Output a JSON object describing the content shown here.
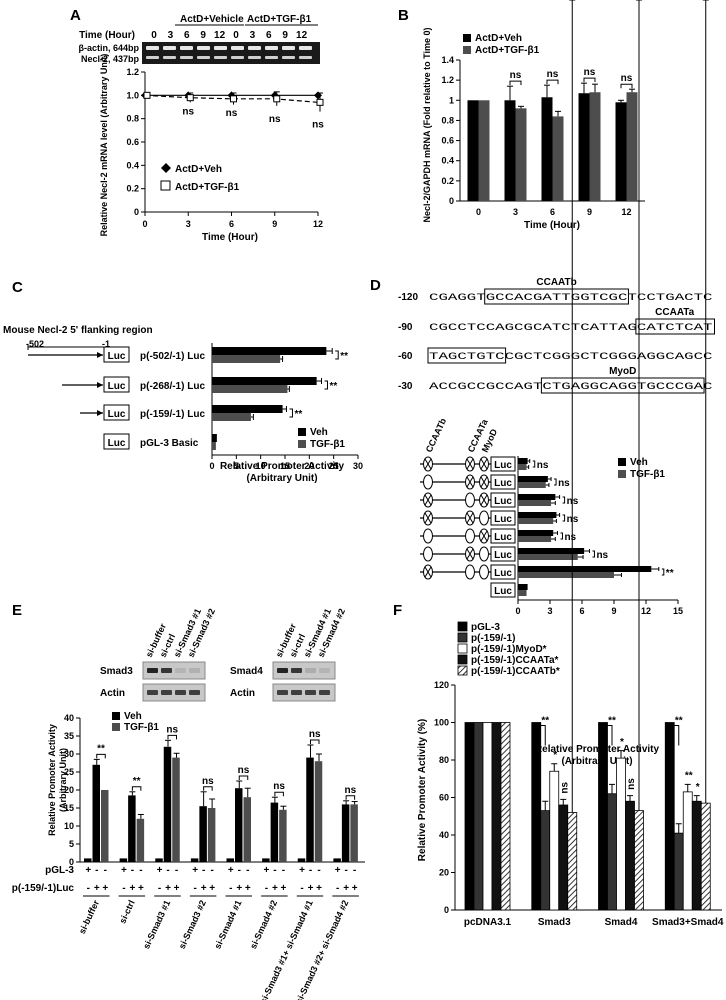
{
  "panels": {
    "A": {
      "letter": "A",
      "header": [
        "ActD+Vehicle",
        "ActD+TGF-β1"
      ],
      "time_label": "Time (Hour)",
      "gel_times": [
        "0",
        "3",
        "6",
        "9",
        "12",
        "0",
        "3",
        "6",
        "9",
        "12"
      ],
      "bands": [
        "β-actin, 644bp",
        "Necl-2, 437bp"
      ],
      "legend": [
        "ActD+Veh",
        "ActD+TGF-β1"
      ],
      "chart_data": {
        "type": "line",
        "x": [
          0,
          3,
          6,
          9,
          12
        ],
        "series": [
          {
            "name": "ActD+Veh",
            "values": [
              1.0,
              1.0,
              1.0,
              1.0,
              1.0
            ]
          },
          {
            "name": "ActD+TGF-β1",
            "values": [
              1.0,
              0.98,
              0.97,
              0.97,
              0.94
            ]
          }
        ],
        "annotations": [
          "ns",
          "ns",
          "ns",
          "ns"
        ],
        "xlabel": "Time (Hour)",
        "ylabel": "Relative Necl-2 mRNA level (Arbitrary Unit)",
        "xticks": [
          "0",
          "3",
          "6",
          "9",
          "12"
        ],
        "yticks": [
          "0",
          "0.2",
          "0.4",
          "0.6",
          "0.8",
          "1.0",
          "1.2"
        ],
        "ylim": [
          0,
          1.2
        ],
        "xlim": [
          0,
          12
        ]
      }
    },
    "B": {
      "letter": "B",
      "chart_data": {
        "type": "bar",
        "categories": [
          "0",
          "3",
          "6",
          "9",
          "12"
        ],
        "series": [
          {
            "name": "ActD+Veh",
            "values": [
              1.0,
              1.0,
              1.03,
              1.07,
              0.98
            ]
          },
          {
            "name": "ActD+TGF-β1",
            "values": [
              1.0,
              0.92,
              0.84,
              1.08,
              1.08
            ]
          }
        ],
        "annotations": [
          "ns",
          "ns",
          "ns",
          "ns"
        ],
        "xlabel": "Time (Hour)",
        "ylabel": "Necl-2/GAPDH mRNA (Fold relative to Time 0)",
        "yticks": [
          "0",
          "0.2",
          "0.4",
          "0.6",
          "0.8",
          "1",
          "1.2",
          "1.4"
        ],
        "ylim": [
          0,
          1.4
        ]
      }
    },
    "C": {
      "letter": "C",
      "region_label": "Mouse Necl-2 5' flanking region",
      "pos_labels": [
        "-502",
        "-1"
      ],
      "luc": "Luc",
      "constructs": [
        "p(-502/-1) Luc",
        "p(-268/-1) Luc",
        "p(-159/-1) Luc",
        "pGL-3 Basic"
      ],
      "legend": [
        "Veh",
        "TGF-β1"
      ],
      "chart_data": {
        "type": "bar",
        "orientation": "horizontal",
        "categories": [
          "p(-502/-1) Luc",
          "p(-268/-1) Luc",
          "p(-159/-1) Luc",
          "pGL-3 Basic"
        ],
        "series": [
          {
            "name": "Veh",
            "values": [
              23.5,
              21.5,
              14.5,
              1.0
            ]
          },
          {
            "name": "TGF-β1",
            "values": [
              14.0,
              15.5,
              8.0,
              0.8
            ]
          }
        ],
        "annotations": [
          "**",
          "**",
          "**",
          ""
        ],
        "xlabel": "Relative Promoter Activity (Arbitrary Unit)",
        "xticks": [
          "0",
          "5",
          "10",
          "15",
          "20",
          "25",
          "30"
        ],
        "xlim": [
          0,
          30
        ]
      }
    },
    "D": {
      "letter": "D",
      "seq_rows": [
        {
          "pos": "-120",
          "text": "CGAGGTGCCACGATTGGTCGCTCCTGACTC"
        },
        {
          "pos": "-90",
          "text": "CGCCTCCAGCGCATCTCATTAGCATCTCAT"
        },
        {
          "pos": "-60",
          "text": "TAGCTGTCCGCTCGGGCTCGGGAGGCAGCC"
        },
        {
          "pos": "-30",
          "text": "ACCGCCGCCAGTCTGAGGCAGGTGCCCGAC"
        }
      ],
      "boxes": [
        "CCAATb",
        "CCAATa",
        "MyoD"
      ],
      "col_labels": [
        "CCAATb",
        "CCAATa",
        "MyoD"
      ],
      "luc": "Luc",
      "legend": [
        "Veh",
        "TGF-β1"
      ],
      "chart_data": {
        "type": "bar",
        "orientation": "horizontal",
        "categories": [
          "1",
          "2",
          "3",
          "4",
          "5",
          "6",
          "7",
          "8"
        ],
        "series": [
          {
            "name": "Veh",
            "values": [
              0.9,
              2.8,
              3.5,
              3.6,
              3.3,
              6.2,
              12.5,
              0.9
            ]
          },
          {
            "name": "TGF-β1",
            "values": [
              0.8,
              2.6,
              3.1,
              3.3,
              3.1,
              5.6,
              9.0,
              0.8
            ]
          }
        ],
        "annotations": [
          "ns",
          "ns",
          "ns",
          "ns",
          "ns",
          "ns",
          "**",
          ""
        ],
        "xlabel": "Relative Promoter Activity (Arbitrary Unit)",
        "xticks": [
          "0",
          "3",
          "6",
          "9",
          "12",
          "15"
        ],
        "xlim": [
          0,
          15
        ]
      }
    },
    "E": {
      "letter": "E",
      "blot_left": [
        "si-buffer",
        "si-ctrl",
        "si-Smad3 #1",
        "si-Smad3 #2"
      ],
      "blot_right": [
        "si-buffer",
        "si-ctrl",
        "si-Smad4 #1",
        "si-Smad4 #2"
      ],
      "blot_rows_left": [
        "Smad3",
        "Actin"
      ],
      "blot_rows_right": [
        "Smad4",
        "Actin"
      ],
      "legend": [
        "Veh",
        "TGF-β1"
      ],
      "row_labels": [
        "pGL-3",
        "p(-159/-1)Luc"
      ],
      "pgl_signs": [
        "+",
        "-",
        "-",
        "+",
        "-",
        "-",
        "+",
        "-",
        "-",
        "+",
        "-",
        "-",
        "+",
        "-",
        "-",
        "+",
        "-",
        "-",
        "+",
        "-",
        "-",
        "+",
        "-",
        "-"
      ],
      "luc_signs": [
        "-",
        "+",
        "+",
        "-",
        "+",
        "+",
        "-",
        "+",
        "+",
        "-",
        "+",
        "+",
        "-",
        "+",
        "+",
        "-",
        "+",
        "+",
        "-",
        "+",
        "+",
        "-",
        "+",
        "+"
      ],
      "groups": [
        "si-buffer",
        "si-ctrl",
        "si-Smad3 #1",
        "si-Smad3 #2",
        "si-Smad4 #1",
        "si-Smad4 #2",
        "si-Smad3 #1+ si-Smad4 #1",
        "si-Smad3 #2+ si-Smad4 #2"
      ],
      "chart_data": {
        "type": "bar",
        "categories": [
          "si-buffer",
          "si-ctrl",
          "si-Smad3 #1",
          "si-Smad3 #2",
          "si-Smad4 #1",
          "si-Smad4 #2",
          "si-Smad3 #1+ si-Smad4 #1",
          "si-Smad3 #2+ si-Smad4 #2"
        ],
        "series": [
          {
            "name": "pGL-3",
            "values": [
              1,
              1,
              1,
              1,
              1,
              1,
              1,
              1
            ]
          },
          {
            "name": "Veh",
            "values": [
              27,
              18.5,
              32,
              15.5,
              20.5,
              16.5,
              29,
              16
            ]
          },
          {
            "name": "TGF-β1",
            "values": [
              20,
              12,
              29,
              15,
              18,
              14.5,
              28,
              16
            ]
          }
        ],
        "annotations": [
          "**",
          "**",
          "ns",
          "ns",
          "ns",
          "ns",
          "ns",
          "ns"
        ],
        "ylabel": "Relative Promoter Activity (Arbitrary Unit)",
        "yticks": [
          "0",
          "5",
          "10",
          "15",
          "20",
          "25",
          "30",
          "35",
          "40"
        ],
        "ylim": [
          0,
          40
        ]
      }
    },
    "F": {
      "letter": "F",
      "legend": [
        "pGL-3",
        "p(-159/-1)",
        "p(-159/-1)MyoD*",
        "p(-159/-1)CCAATa*",
        "p(-159/-1)CCAATb*"
      ],
      "chart_data": {
        "type": "bar",
        "categories": [
          "pcDNA3.1",
          "Smad3",
          "Smad4",
          "Smad3+Smad4"
        ],
        "series": [
          {
            "name": "pGL-3",
            "values": [
              100,
              100,
              100,
              100
            ]
          },
          {
            "name": "p(-159/-1)",
            "values": [
              100,
              53,
              62,
              41
            ]
          },
          {
            "name": "p(-159/-1)MyoD*",
            "values": [
              100,
              74,
              81,
              63
            ]
          },
          {
            "name": "p(-159/-1)CCAATa*",
            "values": [
              100,
              56,
              58,
              58
            ]
          },
          {
            "name": "p(-159/-1)CCAATb*",
            "values": [
              100,
              52,
              53,
              57
            ]
          }
        ],
        "annotations": [
          [],
          [
            "**",
            "*",
            "ns",
            "ns"
          ],
          [
            "**",
            "*",
            "ns",
            "ns"
          ],
          [
            "**",
            "**",
            "*",
            "ns"
          ]
        ],
        "ylabel": "Relative Promoter Activity (%)",
        "yticks": [
          "0",
          "20",
          "40",
          "60",
          "80",
          "100",
          "120"
        ],
        "ylim": [
          0,
          120
        ]
      }
    }
  }
}
